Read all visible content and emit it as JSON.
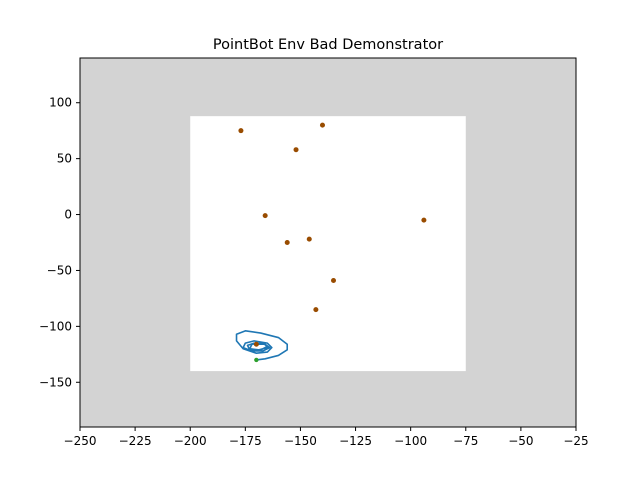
{
  "chart_data": {
    "type": "scatter",
    "title": "PointBot Env Bad Demonstrator",
    "xlabel": "",
    "ylabel": "",
    "xlim": [
      -250,
      -25
    ],
    "ylim": [
      -190,
      140
    ],
    "x_ticks": [
      -250,
      -225,
      -200,
      -175,
      -150,
      -125,
      -100,
      -75,
      -50,
      -25
    ],
    "y_ticks": [
      -150,
      -100,
      -50,
      0,
      50,
      100
    ],
    "grid": false,
    "legend": "none",
    "colors": {
      "outer_region": "#d3d3d3",
      "free_region": "#ffffff",
      "obstacles": "#994c00",
      "trajectory": "#1f77b4",
      "start": "#2ca02c"
    },
    "free_region": {
      "x": [
        -200,
        -75
      ],
      "y": [
        -140,
        88
      ]
    },
    "obstacle_points": [
      {
        "x": -177,
        "y": 75
      },
      {
        "x": -140,
        "y": 80
      },
      {
        "x": -152,
        "y": 58
      },
      {
        "x": -166,
        "y": -1
      },
      {
        "x": -94,
        "y": -5
      },
      {
        "x": -156,
        "y": -25
      },
      {
        "x": -146,
        "y": -22
      },
      {
        "x": -135,
        "y": -59
      },
      {
        "x": -143,
        "y": -85
      },
      {
        "x": -170,
        "y": -116
      }
    ],
    "start_point": {
      "x": -170,
      "y": -130
    },
    "trajectory": [
      {
        "x": -170,
        "y": -130
      },
      {
        "x": -166,
        "y": -129
      },
      {
        "x": -160,
        "y": -126
      },
      {
        "x": -156,
        "y": -121
      },
      {
        "x": -156,
        "y": -116
      },
      {
        "x": -160,
        "y": -110
      },
      {
        "x": -168,
        "y": -106
      },
      {
        "x": -175,
        "y": -104
      },
      {
        "x": -179,
        "y": -107
      },
      {
        "x": -179,
        "y": -113
      },
      {
        "x": -176,
        "y": -120
      },
      {
        "x": -170,
        "y": -124
      },
      {
        "x": -165,
        "y": -123
      },
      {
        "x": -163,
        "y": -119
      },
      {
        "x": -165,
        "y": -115
      },
      {
        "x": -171,
        "y": -113
      },
      {
        "x": -175,
        "y": -115
      },
      {
        "x": -176,
        "y": -119
      },
      {
        "x": -172,
        "y": -122
      },
      {
        "x": -167,
        "y": -122
      },
      {
        "x": -164,
        "y": -119
      },
      {
        "x": -166,
        "y": -116
      },
      {
        "x": -171,
        "y": -115
      },
      {
        "x": -174,
        "y": -117
      },
      {
        "x": -173,
        "y": -121
      },
      {
        "x": -168,
        "y": -121
      },
      {
        "x": -165,
        "y": -118
      },
      {
        "x": -167,
        "y": -115
      },
      {
        "x": -172,
        "y": -116
      },
      {
        "x": -173,
        "y": -120
      },
      {
        "x": -169,
        "y": -121
      },
      {
        "x": -165,
        "y": -119
      },
      {
        "x": -166,
        "y": -116
      },
      {
        "x": -170,
        "y": -116
      }
    ]
  }
}
